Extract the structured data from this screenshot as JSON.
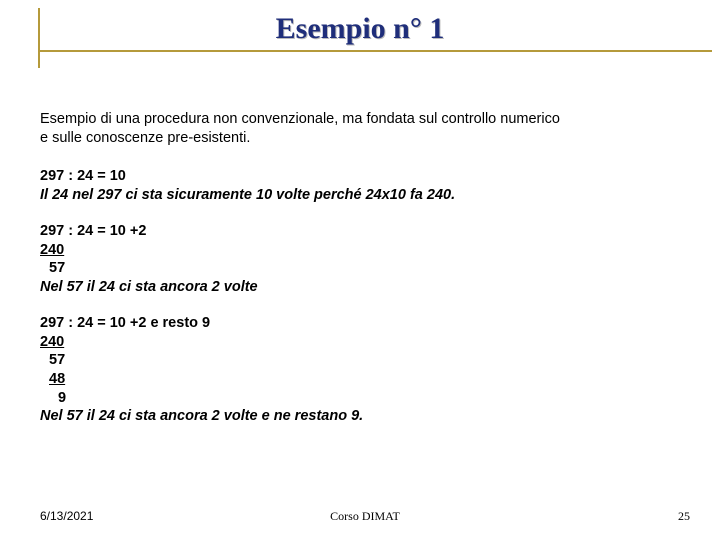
{
  "title": "Esempio n° 1",
  "colors": {
    "title_color": "#1f2e7a",
    "rule_color": "#b59a3b",
    "background": "#ffffff",
    "text": "#000000"
  },
  "intro": {
    "line1": "Esempio di una procedura non convenzionale, ma fondata sul controllo numerico",
    "line2": "e sulle conoscenze pre-esistenti."
  },
  "step1": {
    "eq": "297 : 24  =  10",
    "explain": "Il 24 nel 297 ci sta sicuramente 10 volte perché 24x10 fa 240."
  },
  "step2": {
    "eq": "297 : 24  =  10 +2",
    "c1": "240",
    "c2": "57",
    "explain": "Nel 57 il 24 ci sta ancora 2 volte"
  },
  "step3": {
    "eq": "297 : 24  =  10 +2 e resto 9",
    "c1": "240",
    "c2": "57",
    "c3": "48",
    "c4": "9",
    "explain": "Nel 57 il 24 ci sta ancora 2 volte e ne restano 9."
  },
  "footer": {
    "date": "6/13/2021",
    "course": "Corso DIMAT",
    "page": "25"
  }
}
